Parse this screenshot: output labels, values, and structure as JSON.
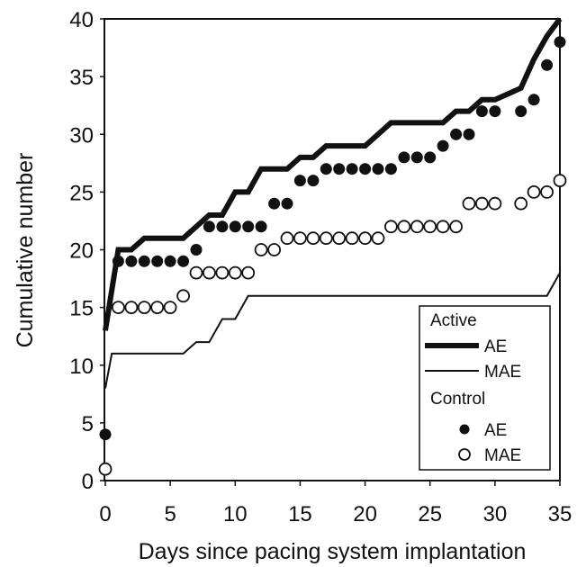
{
  "chart_data": {
    "type": "line",
    "xlabel": "Days since pacing system implantation",
    "ylabel": "Cumulative number",
    "xlim": [
      0,
      35
    ],
    "ylim": [
      0,
      40
    ],
    "xticks": [
      "0",
      "5",
      "10",
      "15",
      "20",
      "25",
      "30",
      "35"
    ],
    "yticks": [
      "0",
      "5",
      "10",
      "15",
      "20",
      "25",
      "30",
      "35",
      "40"
    ],
    "grid": false,
    "legend_position": "bottom-right",
    "legend": {
      "group_active": "Active",
      "group_control": "Control",
      "active_ae": "AE",
      "active_mae": "MAE",
      "control_ae": "AE",
      "control_mae": "MAE"
    },
    "series": [
      {
        "group": "Active",
        "name": "AE",
        "kind": "step-line",
        "style": "thick",
        "points": [
          [
            0,
            13
          ],
          [
            1,
            20
          ],
          [
            2,
            20
          ],
          [
            3,
            21
          ],
          [
            4,
            21
          ],
          [
            5,
            21
          ],
          [
            6,
            21
          ],
          [
            7,
            22
          ],
          [
            8,
            23
          ],
          [
            9,
            23
          ],
          [
            10,
            25
          ],
          [
            11,
            25
          ],
          [
            12,
            27
          ],
          [
            13,
            27
          ],
          [
            14,
            27
          ],
          [
            15,
            28
          ],
          [
            16,
            28
          ],
          [
            17,
            29
          ],
          [
            18,
            29
          ],
          [
            19,
            29
          ],
          [
            20,
            29
          ],
          [
            21,
            30
          ],
          [
            22,
            31
          ],
          [
            23,
            31
          ],
          [
            24,
            31
          ],
          [
            25,
            31
          ],
          [
            26,
            31
          ],
          [
            27,
            32
          ],
          [
            28,
            32
          ],
          [
            29,
            33
          ],
          [
            30,
            33
          ],
          [
            31,
            33.5
          ],
          [
            32,
            34
          ],
          [
            33,
            36.5
          ],
          [
            34,
            38.5
          ],
          [
            35,
            40
          ]
        ]
      },
      {
        "group": "Active",
        "name": "MAE",
        "kind": "step-line",
        "style": "thin",
        "points": [
          [
            0,
            8
          ],
          [
            0.5,
            11
          ],
          [
            1,
            11
          ],
          [
            2,
            11
          ],
          [
            3,
            11
          ],
          [
            4,
            11
          ],
          [
            5,
            11
          ],
          [
            6,
            11
          ],
          [
            7,
            12
          ],
          [
            8,
            12
          ],
          [
            9,
            14
          ],
          [
            10,
            14
          ],
          [
            11,
            16
          ],
          [
            12,
            16
          ],
          [
            13,
            16
          ],
          [
            14,
            16
          ],
          [
            15,
            16
          ],
          [
            16,
            16
          ],
          [
            17,
            16
          ],
          [
            18,
            16
          ],
          [
            19,
            16
          ],
          [
            20,
            16
          ],
          [
            21,
            16
          ],
          [
            22,
            16
          ],
          [
            23,
            16
          ],
          [
            24,
            16
          ],
          [
            25,
            16
          ],
          [
            26,
            16
          ],
          [
            27,
            16
          ],
          [
            28,
            16
          ],
          [
            29,
            16
          ],
          [
            30,
            16
          ],
          [
            31,
            16
          ],
          [
            32,
            16
          ],
          [
            33,
            16
          ],
          [
            34,
            16
          ],
          [
            35,
            18
          ]
        ]
      },
      {
        "group": "Control",
        "name": "AE",
        "kind": "points",
        "marker": "filled-circle",
        "points": [
          [
            0,
            4
          ],
          [
            1,
            19
          ],
          [
            2,
            19
          ],
          [
            3,
            19
          ],
          [
            4,
            19
          ],
          [
            5,
            19
          ],
          [
            6,
            19
          ],
          [
            7,
            20
          ],
          [
            8,
            22
          ],
          [
            9,
            22
          ],
          [
            10,
            22
          ],
          [
            11,
            22
          ],
          [
            12,
            22
          ],
          [
            13,
            24
          ],
          [
            14,
            24
          ],
          [
            15,
            26
          ],
          [
            16,
            26
          ],
          [
            17,
            27
          ],
          [
            18,
            27
          ],
          [
            19,
            27
          ],
          [
            20,
            27
          ],
          [
            21,
            27
          ],
          [
            22,
            27
          ],
          [
            23,
            28
          ],
          [
            24,
            28
          ],
          [
            25,
            28
          ],
          [
            26,
            29
          ],
          [
            27,
            30
          ],
          [
            28,
            30
          ],
          [
            29,
            32
          ],
          [
            30,
            32
          ],
          [
            32,
            32
          ],
          [
            33,
            33
          ],
          [
            34,
            36
          ],
          [
            35,
            38
          ]
        ]
      },
      {
        "group": "Control",
        "name": "MAE",
        "kind": "points",
        "marker": "open-circle",
        "points": [
          [
            0,
            1
          ],
          [
            1,
            15
          ],
          [
            2,
            15
          ],
          [
            3,
            15
          ],
          [
            4,
            15
          ],
          [
            5,
            15
          ],
          [
            6,
            16
          ],
          [
            7,
            18
          ],
          [
            8,
            18
          ],
          [
            9,
            18
          ],
          [
            10,
            18
          ],
          [
            11,
            18
          ],
          [
            12,
            20
          ],
          [
            13,
            20
          ],
          [
            14,
            21
          ],
          [
            15,
            21
          ],
          [
            16,
            21
          ],
          [
            17,
            21
          ],
          [
            18,
            21
          ],
          [
            19,
            21
          ],
          [
            20,
            21
          ],
          [
            21,
            21
          ],
          [
            22,
            22
          ],
          [
            23,
            22
          ],
          [
            24,
            22
          ],
          [
            25,
            22
          ],
          [
            26,
            22
          ],
          [
            27,
            22
          ],
          [
            28,
            24
          ],
          [
            29,
            24
          ],
          [
            30,
            24
          ],
          [
            32,
            24
          ],
          [
            33,
            25
          ],
          [
            34,
            25
          ],
          [
            35,
            26
          ]
        ]
      }
    ]
  }
}
